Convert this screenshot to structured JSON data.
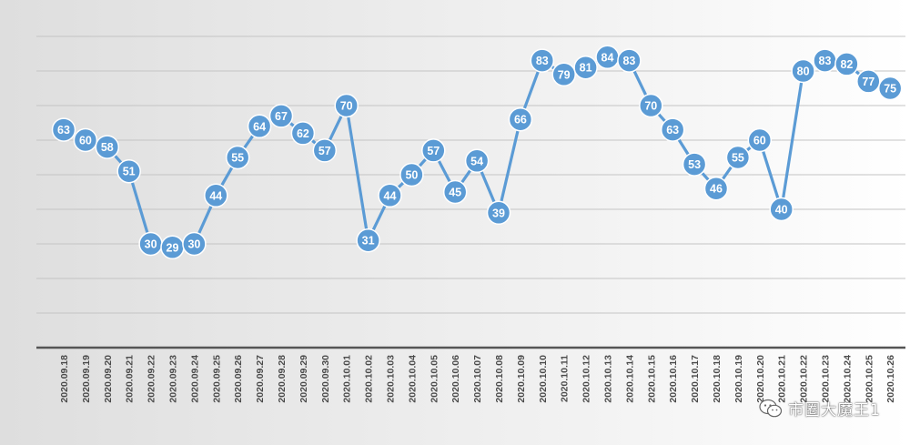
{
  "chart_data": {
    "type": "line",
    "categories": [
      "2020.09.18",
      "2020.09.19",
      "2020.09.20",
      "2020.09.21",
      "2020.09.22",
      "2020.09.23",
      "2020.09.24",
      "2020.09.25",
      "2020.09.26",
      "2020.09.27",
      "2020.09.28",
      "2020.09.29",
      "2020.09.30",
      "2020.10.01",
      "2020.10.02",
      "2020.10.03",
      "2020.10.04",
      "2020.10.05",
      "2020.10.06",
      "2020.10.07",
      "2020.10.08",
      "2020.10.09",
      "2020.10.10",
      "2020.10.11",
      "2020.10.12",
      "2020.10.13",
      "2020.10.14",
      "2020.10.15",
      "2020.10.16",
      "2020.10.17",
      "2020.10.18",
      "2020.10.19",
      "2020.10.20",
      "2020.10.21",
      "2020.10.22",
      "2020.10.23",
      "2020.10.24",
      "2020.10.25",
      "2020.10.26"
    ],
    "values": [
      63,
      60,
      58,
      51,
      30,
      29,
      30,
      44,
      55,
      64,
      67,
      62,
      57,
      70,
      31,
      44,
      50,
      57,
      45,
      54,
      39,
      66,
      83,
      79,
      81,
      84,
      83,
      70,
      63,
      53,
      46,
      55,
      60,
      40,
      80,
      83,
      82,
      77,
      75
    ],
    "ylim": [
      0,
      90
    ],
    "grid": true,
    "legend": "none",
    "line_color": "#5b9bd5",
    "marker_color": "#5b9bd5",
    "label_color": "#ffffff"
  },
  "watermark": {
    "text": "市圈大魔王1",
    "icon": "wechat-icon"
  }
}
